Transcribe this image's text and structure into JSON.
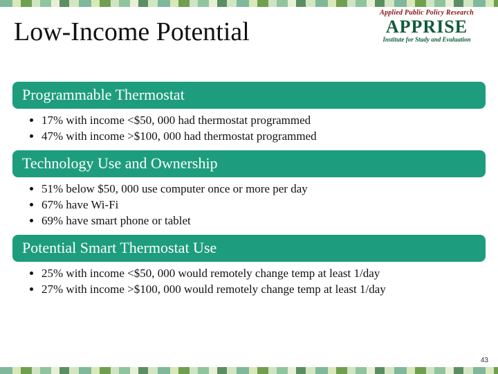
{
  "colors": {
    "header_bg": "#1d9d7d",
    "header_text": "#ffffff",
    "logo_arc": "#8a0f12",
    "logo_main": "#0f5a3a",
    "body_text": "#111111",
    "background": "#ffffff"
  },
  "logo": {
    "arc_text": "Applied Public Policy Research",
    "main": "APPRISE",
    "sub": "Institute for Study and Evaluation"
  },
  "title": "Low-Income Potential",
  "sections": [
    {
      "heading": "Programmable Thermostat",
      "bullets": [
        "17% with income <$50, 000 had thermostat programmed",
        "47% with income >$100, 000 had thermostat programmed"
      ]
    },
    {
      "heading": "Technology Use and Ownership",
      "bullets": [
        "51% below $50, 000 use computer once or more per day",
        "67% have Wi-Fi",
        "69% have smart phone or tablet"
      ]
    },
    {
      "heading": "Potential Smart Thermostat Use",
      "bullets": [
        "25% with income <$50, 000 would remotely change temp at least 1/day",
        "27% with income >$100, 000  would remotely change temp at least 1/day"
      ]
    }
  ],
  "page_number": "43"
}
